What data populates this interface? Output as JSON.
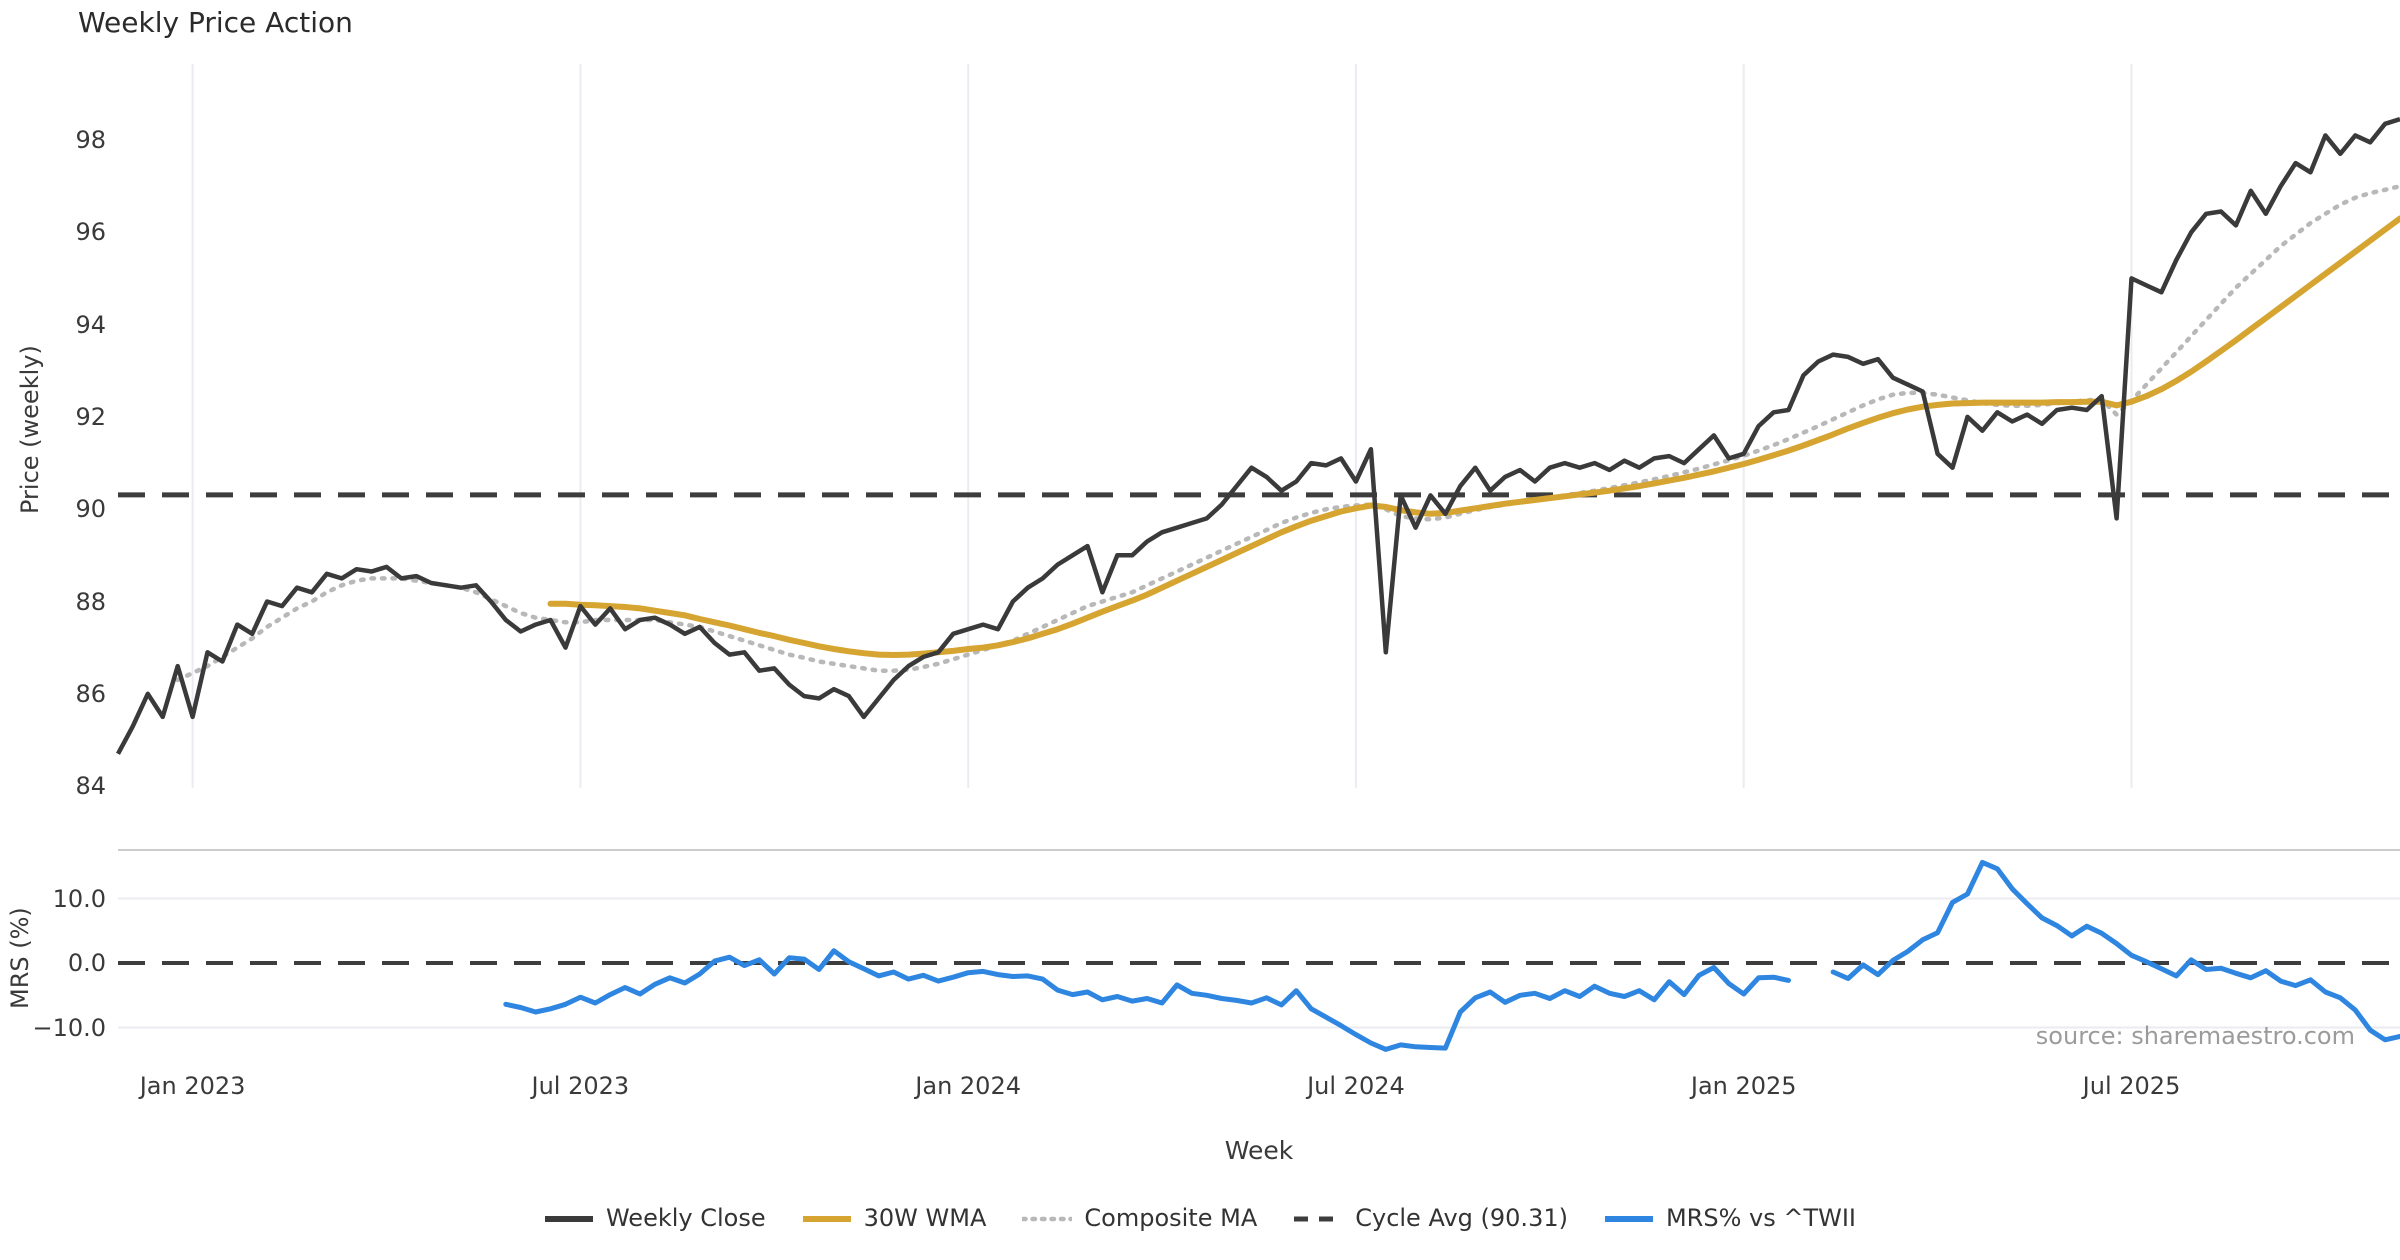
{
  "title": "Weekly Price Action",
  "source_note": "source: sharemaestro.com",
  "axes": {
    "price_axis_title": "Price (weekly)",
    "mrs_axis_title": "MRS (%)",
    "x_axis_title": "Week"
  },
  "colors": {
    "weekly_close": "#3a3a3a",
    "wma30": "#d6a430",
    "composite": "#b8b8b8",
    "cycle_avg": "#3d3d3d",
    "mrs": "#2e86e0",
    "grid": "#ebebf2",
    "panel_border": "#cccccc",
    "text": "#3a3a3a",
    "muted_text": "#9b9b9b"
  },
  "legend": {
    "items": [
      {
        "label": "Weekly Close",
        "style": "solid",
        "color_key": "weekly_close"
      },
      {
        "label": "30W WMA",
        "style": "solid",
        "color_key": "wma30"
      },
      {
        "label": "Composite MA",
        "style": "dotted",
        "color_key": "composite"
      },
      {
        "label": "Cycle Avg (90.31)",
        "style": "dashed",
        "color_key": "cycle_avg"
      },
      {
        "label": "MRS% vs ^TWII",
        "style": "solid",
        "color_key": "mrs"
      }
    ]
  },
  "chart_data": {
    "type": "line",
    "title": "Weekly Price Action",
    "xlabel": "Week",
    "panels": [
      {
        "name": "price",
        "ylabel": "Price (weekly)",
        "ylim": [
          83.9,
          99.7
        ],
        "grid": "vertical-only"
      },
      {
        "name": "mrs",
        "ylabel": "MRS (%)",
        "ylim": [
          -15.5,
          17.5
        ],
        "grid": "horizontal-only"
      }
    ],
    "cycle_avg": 90.31,
    "price_ticks": [
      98,
      96,
      94,
      92,
      90,
      88,
      86,
      84
    ],
    "mrs_ticks": [
      {
        "label": "10.0",
        "value": 10
      },
      {
        "label": "0.0",
        "value": 0
      },
      {
        "label": "−10.0",
        "value": -10
      }
    ],
    "x_ticks": [
      {
        "label": "Jan 2023",
        "week": 5
      },
      {
        "label": "Jul 2023",
        "week": 31
      },
      {
        "label": "Jan 2024",
        "week": 57
      },
      {
        "label": "Jul 2024",
        "week": 83
      },
      {
        "label": "Jan 2025",
        "week": 109
      },
      {
        "label": "Jul 2025",
        "week": 135
      }
    ],
    "x_unit": "week-index from first plotted week (weekly data, Dec 2022 – Nov 2025)",
    "series": {
      "weekly_close": {
        "name": "Weekly Close",
        "panel": "price",
        "start_week": 0,
        "values": [
          84.7,
          85.3,
          86.0,
          85.5,
          86.6,
          85.5,
          86.9,
          86.7,
          87.5,
          87.3,
          88.0,
          87.9,
          88.3,
          88.2,
          88.6,
          88.5,
          88.7,
          88.65,
          88.75,
          88.5,
          88.55,
          88.4,
          88.35,
          88.3,
          88.35,
          88.0,
          87.6,
          87.35,
          87.5,
          87.6,
          87.0,
          87.9,
          87.5,
          87.85,
          87.4,
          87.6,
          87.65,
          87.5,
          87.3,
          87.45,
          87.1,
          86.85,
          86.9,
          86.5,
          86.55,
          86.2,
          85.95,
          85.9,
          86.1,
          85.95,
          85.5,
          85.9,
          86.3,
          86.6,
          86.8,
          86.9,
          87.3,
          87.4,
          87.5,
          87.4,
          88.0,
          88.3,
          88.5,
          88.8,
          89.0,
          89.2,
          88.2,
          89.0,
          89.0,
          89.3,
          89.5,
          89.6,
          89.7,
          89.8,
          90.1,
          90.5,
          90.9,
          90.7,
          90.4,
          90.6,
          91.0,
          90.95,
          91.1,
          90.6,
          91.3,
          86.9,
          90.3,
          89.6,
          90.3,
          89.9,
          90.5,
          90.9,
          90.4,
          90.7,
          90.85,
          90.6,
          90.9,
          91.0,
          90.9,
          91.0,
          90.85,
          91.05,
          90.9,
          91.1,
          91.15,
          91.0,
          91.3,
          91.6,
          91.1,
          91.2,
          91.8,
          92.1,
          92.15,
          92.9,
          93.2,
          93.35,
          93.3,
          93.15,
          93.25,
          92.85,
          92.7,
          92.55,
          91.2,
          90.9,
          92.0,
          91.7,
          92.1,
          91.9,
          92.05,
          91.85,
          92.15,
          92.2,
          92.15,
          92.45,
          89.8,
          95.0,
          94.85,
          94.7,
          95.4,
          96.0,
          96.4,
          96.45,
          96.15,
          96.9,
          96.4,
          97.0,
          97.5,
          97.3,
          98.1,
          97.7,
          98.1,
          97.95,
          98.35,
          98.45
        ]
      },
      "wma_30w": {
        "name": "30W WMA",
        "panel": "price",
        "start_week": 29,
        "values": [
          87.95,
          87.95,
          87.93,
          87.92,
          87.9,
          87.88,
          87.85,
          87.8,
          87.75,
          87.7,
          87.62,
          87.55,
          87.48,
          87.4,
          87.32,
          87.25,
          87.17,
          87.1,
          87.03,
          86.97,
          86.92,
          86.88,
          86.85,
          86.84,
          86.85,
          86.87,
          86.9,
          86.93,
          86.97,
          87.0,
          87.05,
          87.12,
          87.2,
          87.3,
          87.4,
          87.52,
          87.65,
          87.78,
          87.9,
          88.02,
          88.15,
          88.3,
          88.45,
          88.6,
          88.75,
          88.9,
          89.05,
          89.2,
          89.35,
          89.5,
          89.63,
          89.75,
          89.85,
          89.95,
          90.02,
          90.08,
          90.05,
          89.98,
          89.93,
          89.9,
          89.92,
          89.97,
          90.02,
          90.07,
          90.12,
          90.16,
          90.2,
          90.24,
          90.28,
          90.32,
          90.36,
          90.4,
          90.45,
          90.5,
          90.56,
          90.62,
          90.68,
          90.75,
          90.82,
          90.9,
          90.98,
          91.07,
          91.17,
          91.27,
          91.38,
          91.5,
          91.62,
          91.75,
          91.87,
          91.98,
          92.08,
          92.16,
          92.22,
          92.26,
          92.29,
          92.3,
          92.31,
          92.31,
          92.31,
          92.31,
          92.31,
          92.32,
          92.32,
          92.33,
          92.33,
          92.25,
          92.33,
          92.45,
          92.6,
          92.78,
          92.98,
          93.2,
          93.43,
          93.66,
          93.9,
          94.14,
          94.38,
          94.62,
          94.86,
          95.1,
          95.34,
          95.58,
          95.82,
          96.06,
          96.3
        ]
      },
      "composite_ma": {
        "name": "Composite MA",
        "panel": "price",
        "start_week": 4,
        "values": [
          86.3,
          86.45,
          86.6,
          86.8,
          87.0,
          87.2,
          87.45,
          87.65,
          87.85,
          88.0,
          88.2,
          88.35,
          88.45,
          88.5,
          88.5,
          88.5,
          88.45,
          88.4,
          88.35,
          88.3,
          88.2,
          88.05,
          87.9,
          87.75,
          87.65,
          87.6,
          87.55,
          87.55,
          87.6,
          87.6,
          87.6,
          87.6,
          87.6,
          87.55,
          87.5,
          87.45,
          87.35,
          87.25,
          87.15,
          87.05,
          86.95,
          86.85,
          86.78,
          86.7,
          86.65,
          86.6,
          86.55,
          86.5,
          86.5,
          86.52,
          86.58,
          86.65,
          86.75,
          86.85,
          86.95,
          87.05,
          87.15,
          87.3,
          87.45,
          87.6,
          87.75,
          87.9,
          88.0,
          88.1,
          88.2,
          88.35,
          88.5,
          88.65,
          88.8,
          88.95,
          89.1,
          89.25,
          89.4,
          89.55,
          89.7,
          89.82,
          89.92,
          90.0,
          90.05,
          90.08,
          90.1,
          90.0,
          89.85,
          89.8,
          89.78,
          89.82,
          89.9,
          89.98,
          90.05,
          90.1,
          90.15,
          90.2,
          90.25,
          90.3,
          90.35,
          90.4,
          90.46,
          90.52,
          90.58,
          90.65,
          90.72,
          90.8,
          90.88,
          90.97,
          91.06,
          91.16,
          91.27,
          91.39,
          91.52,
          91.66,
          91.8,
          91.95,
          92.1,
          92.25,
          92.38,
          92.48,
          92.52,
          92.52,
          92.48,
          92.42,
          92.36,
          92.3,
          92.26,
          92.24,
          92.24,
          92.26,
          92.3,
          92.33,
          92.36,
          92.38,
          92.05,
          92.35,
          92.7,
          93.05,
          93.4,
          93.75,
          94.1,
          94.45,
          94.8,
          95.1,
          95.4,
          95.7,
          95.95,
          96.2,
          96.4,
          96.6,
          96.75,
          96.85,
          96.92,
          97.0
        ]
      },
      "mrs": {
        "name": "MRS% vs ^TWII",
        "panel": "mrs",
        "start_week": 26,
        "values": [
          -6.4,
          -6.9,
          -7.6,
          -7.1,
          -6.4,
          -5.3,
          -6.2,
          -4.9,
          -3.8,
          -4.8,
          -3.3,
          -2.3,
          -3.1,
          -1.7,
          0.3,
          0.9,
          -0.4,
          0.5,
          -1.7,
          0.8,
          0.6,
          -1.0,
          1.9,
          0.2,
          -0.9,
          -2.0,
          -1.4,
          -2.5,
          -1.9,
          -2.8,
          -2.2,
          -1.5,
          -1.3,
          -1.8,
          -2.1,
          -2.0,
          -2.5,
          -4.2,
          -4.9,
          -4.5,
          -5.7,
          -5.2,
          -5.9,
          -5.5,
          -6.2,
          -3.4,
          -4.7,
          -5.0,
          -5.5,
          -5.8,
          -6.2,
          -5.4,
          -6.5,
          -4.3,
          -7.1,
          -8.4,
          -9.7,
          -11.1,
          -12.4,
          -13.4,
          -12.7,
          -13.0,
          -13.1,
          -13.2,
          -7.6,
          -5.4,
          -4.5,
          -6.1,
          -5.0,
          -4.7,
          -5.5,
          -4.3,
          -5.2,
          -3.6,
          -4.7,
          -5.2,
          -4.3,
          -5.7,
          -2.9,
          -4.9,
          -1.9,
          -0.7,
          -3.2,
          -4.8,
          -2.3,
          -2.2,
          -2.7,
          null,
          null,
          -1.4,
          -2.4,
          -0.3,
          -1.8,
          0.4,
          1.8,
          3.6,
          4.7,
          9.4,
          10.7,
          15.6,
          14.6,
          11.5,
          9.2,
          7.0,
          5.8,
          4.2,
          5.7,
          4.6,
          3.0,
          1.2,
          0.2,
          -0.9,
          -2.0,
          0.5,
          -1.0,
          -0.8,
          -1.6,
          -2.3,
          -1.2,
          -2.8,
          -3.5,
          -2.6,
          -4.5,
          -5.4,
          -7.3,
          -10.4,
          -11.9,
          -11.4
        ]
      }
    }
  }
}
